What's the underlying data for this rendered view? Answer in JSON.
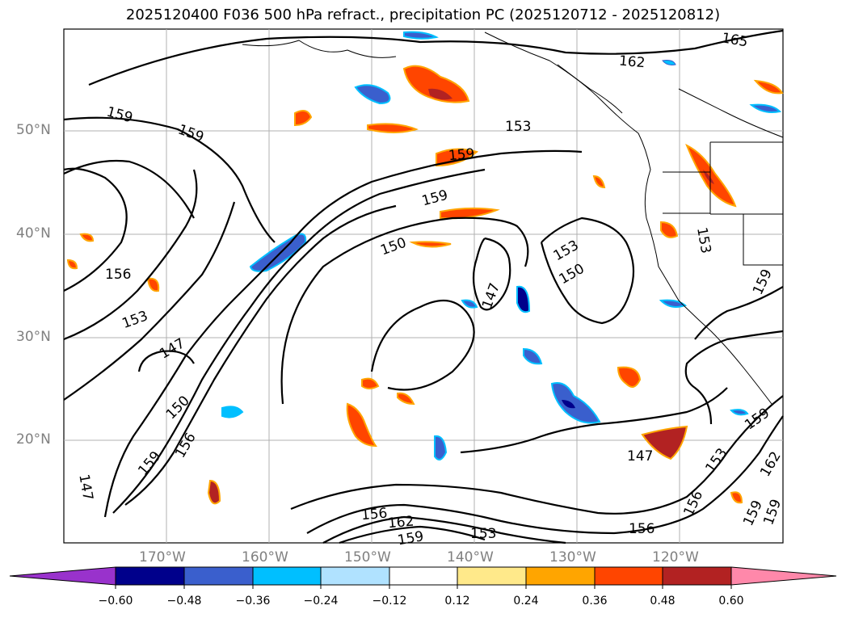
{
  "title": "2025120400 F036 500 hPa refract., precipitation PC (2025120712 - 2025120812)",
  "lat_labels": [
    "50°N",
    "40°N",
    "30°N",
    "20°N"
  ],
  "lon_labels": [
    "170°W",
    "160°W",
    "150°W",
    "140°W",
    "130°W",
    "120°W"
  ],
  "contour_labels": [
    "159",
    "159",
    "156",
    "153",
    "147",
    "150",
    "159",
    "156",
    "147",
    "159",
    "159",
    "150",
    "153",
    "147",
    "150",
    "153",
    "156",
    "162",
    "159",
    "153",
    "156",
    "147",
    "156",
    "153",
    "162",
    "159",
    "159",
    "159",
    "159",
    "153",
    "162",
    "165",
    "153",
    "150"
  ],
  "colorbar": {
    "ticks": [
      "−0.60",
      "−0.48",
      "−0.36",
      "−0.24",
      "−0.12",
      "0.12",
      "0.24",
      "0.36",
      "0.48",
      "0.60"
    ],
    "colors": [
      "#9932cc",
      "#00008b",
      "#3a5fcd",
      "#00bfff",
      "#b0e2ff",
      "#ffffff",
      "#ffe98a",
      "#ffa500",
      "#ff4500",
      "#b22222",
      "#ff88aa"
    ]
  }
}
